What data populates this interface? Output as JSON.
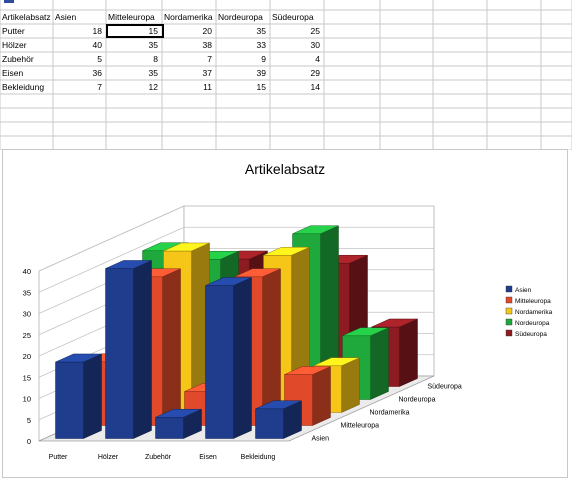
{
  "sheet": {
    "header_row": [
      "Artikelabsatz",
      "Asien",
      "Mitteleuropa",
      "Nordamerika",
      "Nordeuropa",
      "Südeuropa"
    ],
    "rows": [
      {
        "label": "Putter",
        "values": [
          "18",
          "15",
          "20",
          "35",
          "25"
        ]
      },
      {
        "label": "Hölzer",
        "values": [
          "40",
          "35",
          "38",
          "33",
          "30"
        ]
      },
      {
        "label": "Zubehör",
        "values": [
          "5",
          "8",
          "7",
          "9",
          "4"
        ]
      },
      {
        "label": "Eisen",
        "values": [
          "36",
          "35",
          "37",
          "39",
          "29"
        ]
      },
      {
        "label": "Bekleidung",
        "values": [
          "7",
          "12",
          "11",
          "15",
          "14"
        ]
      }
    ]
  },
  "chart_data": {
    "type": "bar",
    "title": "Artikelabsatz",
    "categories": [
      "Putter",
      "Hölzer",
      "Zubehör",
      "Eisen",
      "Bekleidung"
    ],
    "series": [
      {
        "name": "Asien",
        "values": [
          18,
          40,
          5,
          36,
          7
        ],
        "color": "#1f3d8c"
      },
      {
        "name": "Mitteleuropa",
        "values": [
          15,
          35,
          8,
          35,
          12
        ],
        "color": "#e04a2a"
      },
      {
        "name": "Nordamerika",
        "values": [
          20,
          38,
          7,
          37,
          11
        ],
        "color": "#f5c518"
      },
      {
        "name": "Nordeuropa",
        "values": [
          35,
          33,
          9,
          39,
          15
        ],
        "color": "#1fa83c"
      },
      {
        "name": "Südeuropa",
        "values": [
          25,
          30,
          4,
          29,
          14
        ],
        "color": "#8c1c22"
      }
    ],
    "ylim": [
      0,
      40
    ],
    "yticks": [
      "0",
      "5",
      "10",
      "15",
      "20",
      "25",
      "30",
      "35",
      "40"
    ],
    "grid": true,
    "legend_position": "right",
    "projection": "3d"
  }
}
